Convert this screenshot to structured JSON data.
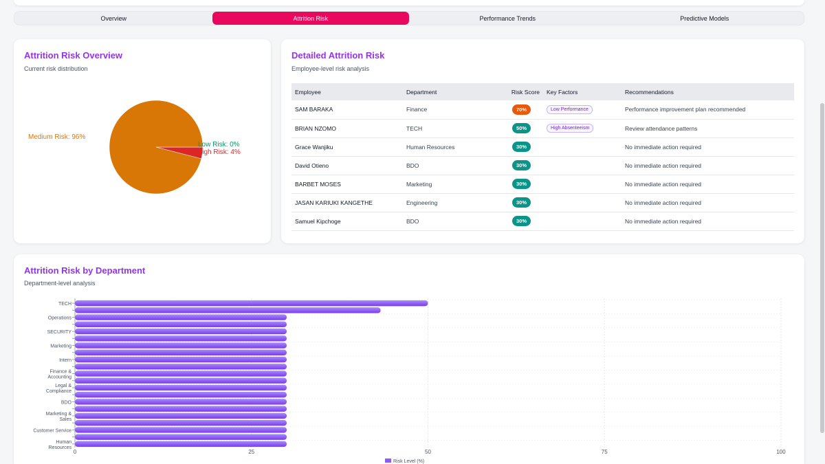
{
  "tabs": [
    {
      "label": "Overview",
      "active": false
    },
    {
      "label": "Attrition Risk",
      "active": true
    },
    {
      "label": "Performance Trends",
      "active": false
    },
    {
      "label": "Predictive Models",
      "active": false
    }
  ],
  "pie_card": {
    "title": "Attrition Risk Overview",
    "subtitle": "Current risk distribution"
  },
  "table_card": {
    "title": "Detailed Attrition Risk",
    "subtitle": "Employee-level risk analysis",
    "headers": [
      "Employee",
      "Department",
      "Risk Score",
      "Key Factors",
      "Recommendations"
    ],
    "rows": [
      {
        "employee": "SAM BARAKA",
        "department": "Finance",
        "score": "70%",
        "factor": "Low Performance",
        "recommendation": "Performance improvement plan recommended"
      },
      {
        "employee": "BRIAN NZOMO",
        "department": "TECH",
        "score": "50%",
        "factor": "High Absenteeism",
        "recommendation": "Review attendance patterns"
      },
      {
        "employee": "Grace Wanjiku",
        "department": "Human Resources",
        "score": "30%",
        "factor": "",
        "recommendation": "No immediate action required"
      },
      {
        "employee": "David Otieno",
        "department": "BDO",
        "score": "30%",
        "factor": "",
        "recommendation": "No immediate action required"
      },
      {
        "employee": "BARBET MOSES",
        "department": "Marketing",
        "score": "30%",
        "factor": "",
        "recommendation": "No immediate action required"
      },
      {
        "employee": "JASAN KARIUKI KANGETHE",
        "department": "Engineering",
        "score": "30%",
        "factor": "",
        "recommendation": "No immediate action required"
      },
      {
        "employee": "Samuel Kipchoge",
        "department": "BDO",
        "score": "30%",
        "factor": "",
        "recommendation": "No immediate action required"
      }
    ]
  },
  "bar_card": {
    "title": "Attrition Risk by Department",
    "subtitle": "Department-level analysis"
  },
  "colors": {
    "accent": "#e8095f",
    "title": "#9333ea",
    "medium": "#d97706",
    "high": "#dc2626",
    "low": "#059669",
    "pill_orange": "#ea580c",
    "pill_green": "#0d9488",
    "bar": "#8b5cf6"
  },
  "chart_data": [
    {
      "type": "pie",
      "slices": [
        {
          "label": "Medium Risk: 96%",
          "value": 96,
          "color": "#d97706"
        },
        {
          "label": "Low Risk: 0%",
          "value": 0,
          "color": "#059669"
        },
        {
          "label": "High Risk: 4%",
          "value": 4,
          "color": "#dc2626"
        }
      ]
    },
    {
      "type": "bar",
      "orientation": "horizontal",
      "categories": [
        "TECH",
        "",
        "Operations",
        "",
        "SECURITY",
        "",
        "Marketing",
        "",
        "Intern",
        "",
        "Finance & Accounting",
        "",
        "Legal & Compliance",
        "",
        "BDO",
        "",
        "Marketing & Sales",
        "",
        "Customer Service",
        "",
        "Human Resources"
      ],
      "values": [
        50,
        43.3,
        30,
        30,
        30,
        30,
        30,
        30,
        30,
        30,
        30,
        30,
        30,
        30,
        30,
        30,
        30,
        30,
        30,
        30,
        30
      ],
      "xlim": [
        0,
        100
      ],
      "xticks": [
        "0",
        "25",
        "50",
        "75",
        "100"
      ],
      "legend": "Risk Level (%)",
      "legend_position": "bottom"
    }
  ]
}
